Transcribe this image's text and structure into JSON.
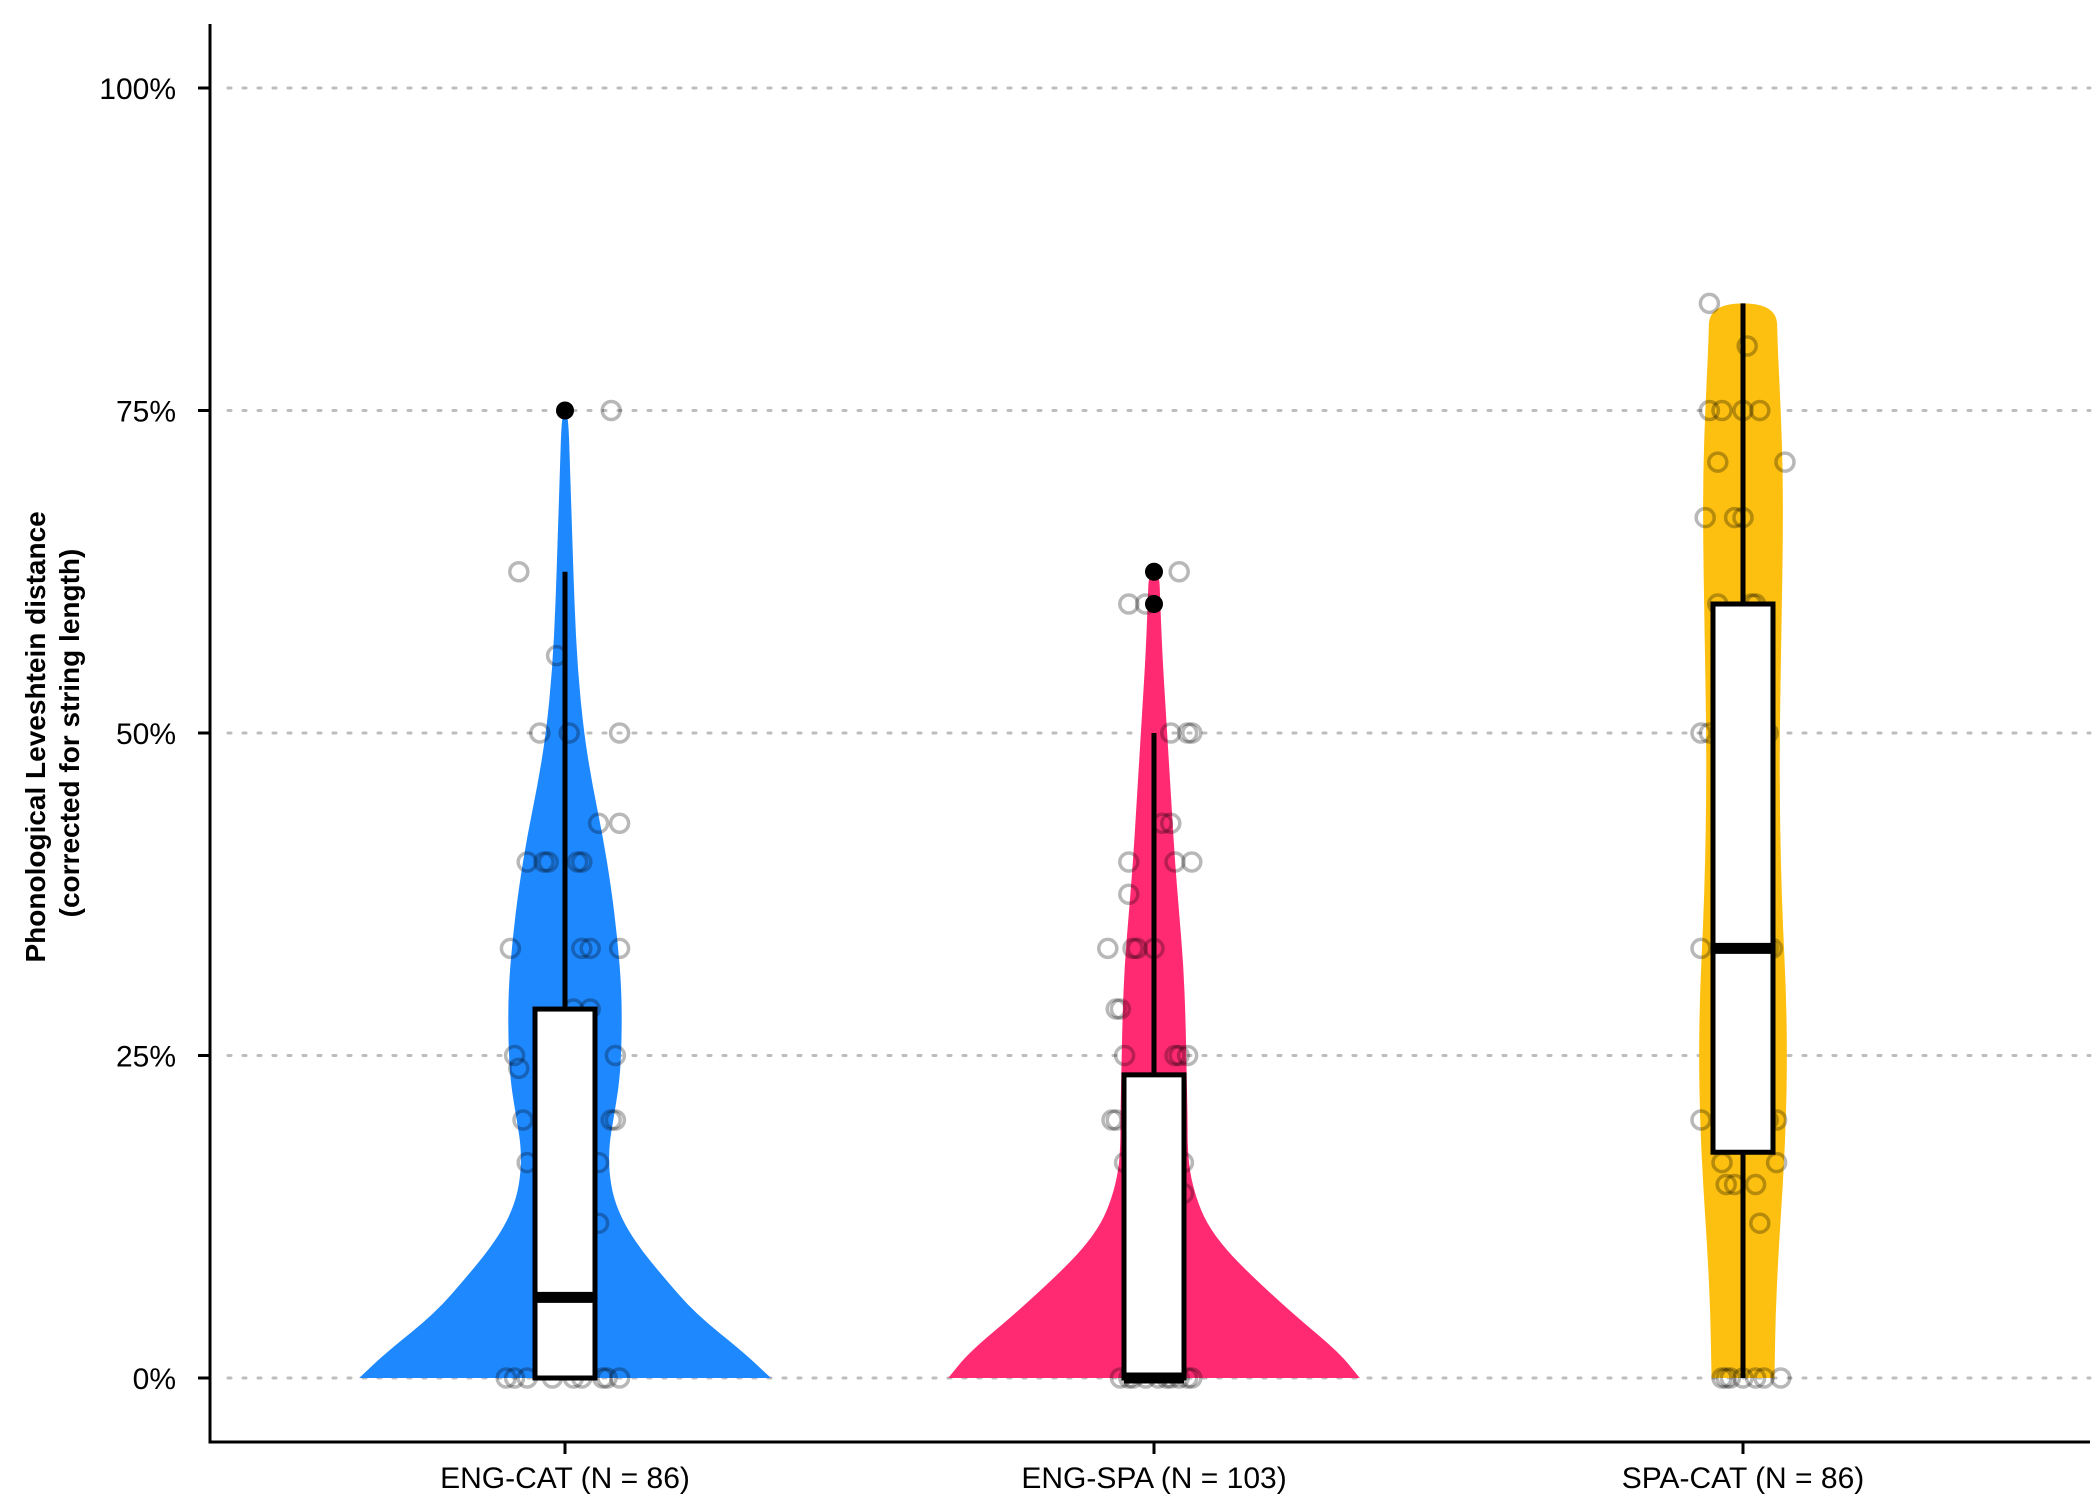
{
  "chart_data": {
    "type": "violin",
    "ylabel": "Phonological Leveshtein distance",
    "ylabel_sub": "(corrected for string length)",
    "ylim": [
      -0.05,
      1.05
    ],
    "y_ticks": [
      0,
      0.25,
      0.5,
      0.75,
      1.0
    ],
    "y_tick_labels": [
      "0%",
      "25%",
      "50%",
      "75%",
      "100%"
    ],
    "grid": "horizontal dotted",
    "categories": [
      "ENG-CAT (N = 86)",
      "ENG-SPA (N = 103)",
      "SPA-CAT (N = 86)"
    ],
    "groups": [
      {
        "name": "ENG-CAT (N = 86)",
        "color": "#1E88FF",
        "range": [
          0,
          0.75
        ],
        "box": {
          "q1": 0,
          "median": 0.0625,
          "q3": 0.286,
          "whisker_low": 0,
          "whisker_high": 0.625
        },
        "outliers": [
          0.75
        ],
        "density": [
          [
            0,
            0.98
          ],
          [
            0.02,
            0.85
          ],
          [
            0.05,
            0.62
          ],
          [
            0.08,
            0.46
          ],
          [
            0.1,
            0.36
          ],
          [
            0.12,
            0.28
          ],
          [
            0.14,
            0.23
          ],
          [
            0.16,
            0.21
          ],
          [
            0.18,
            0.21
          ],
          [
            0.2,
            0.23
          ],
          [
            0.23,
            0.26
          ],
          [
            0.26,
            0.27
          ],
          [
            0.3,
            0.27
          ],
          [
            0.34,
            0.25
          ],
          [
            0.38,
            0.22
          ],
          [
            0.42,
            0.18
          ],
          [
            0.46,
            0.13
          ],
          [
            0.5,
            0.09
          ],
          [
            0.55,
            0.06
          ],
          [
            0.6,
            0.045
          ],
          [
            0.65,
            0.035
          ],
          [
            0.7,
            0.025
          ],
          [
            0.75,
            0.015
          ]
        ],
        "points": [
          [
            0.0,
            -0.14
          ],
          [
            0.0,
            -0.12
          ],
          [
            0.0,
            -0.03
          ],
          [
            0.0,
            0.04
          ],
          [
            0.0,
            0.1
          ],
          [
            0.0,
            0.13
          ],
          [
            0.0,
            0.09
          ],
          [
            0.0,
            -0.09
          ],
          [
            0.0,
            0.02
          ],
          [
            0.12,
            0.08
          ],
          [
            0.167,
            -0.09
          ],
          [
            0.167,
            0.08
          ],
          [
            0.2,
            -0.1
          ],
          [
            0.2,
            0.11
          ],
          [
            0.2,
            0.12
          ],
          [
            0.2,
            0.02
          ],
          [
            0.24,
            -0.11
          ],
          [
            0.25,
            -0.12
          ],
          [
            0.25,
            0.12
          ],
          [
            0.286,
            0.02
          ],
          [
            0.286,
            0.06
          ],
          [
            0.333,
            0.04
          ],
          [
            0.333,
            0.13
          ],
          [
            0.333,
            -0.13
          ],
          [
            0.333,
            0.06
          ],
          [
            0.4,
            -0.09
          ],
          [
            0.4,
            0.03
          ],
          [
            0.4,
            0.04
          ],
          [
            0.4,
            -0.04
          ],
          [
            0.4,
            -0.05
          ],
          [
            0.43,
            0.08
          ],
          [
            0.43,
            0.13
          ],
          [
            0.5,
            -0.06
          ],
          [
            0.5,
            0.01
          ],
          [
            0.5,
            0.13
          ],
          [
            0.56,
            -0.02
          ],
          [
            0.625,
            -0.11
          ],
          [
            0.75,
            0.11
          ]
        ]
      },
      {
        "name": "ENG-SPA (N = 103)",
        "color": "#FF2A72",
        "range": [
          0,
          0.625
        ],
        "box": {
          "q1": 0,
          "median": 0,
          "q3": 0.235,
          "whisker_low": 0,
          "whisker_high": 0.5
        },
        "outliers": [
          0.6,
          0.625
        ],
        "density": [
          [
            0,
            0.98
          ],
          [
            0.02,
            0.88
          ],
          [
            0.05,
            0.66
          ],
          [
            0.08,
            0.46
          ],
          [
            0.1,
            0.34
          ],
          [
            0.12,
            0.25
          ],
          [
            0.14,
            0.2
          ],
          [
            0.16,
            0.17
          ],
          [
            0.18,
            0.16
          ],
          [
            0.2,
            0.16
          ],
          [
            0.24,
            0.155
          ],
          [
            0.28,
            0.15
          ],
          [
            0.32,
            0.14
          ],
          [
            0.36,
            0.12
          ],
          [
            0.4,
            0.1
          ],
          [
            0.44,
            0.085
          ],
          [
            0.48,
            0.07
          ],
          [
            0.52,
            0.055
          ],
          [
            0.56,
            0.04
          ],
          [
            0.6,
            0.03
          ],
          [
            0.625,
            0.025
          ]
        ],
        "points": [
          [
            0.0,
            -0.08
          ],
          [
            0.0,
            -0.05
          ],
          [
            0.0,
            -0.02
          ],
          [
            0.0,
            0.01
          ],
          [
            0.0,
            0.03
          ],
          [
            0.0,
            0.04
          ],
          [
            0.0,
            0.06
          ],
          [
            0.0,
            0.08
          ],
          [
            0.0,
            0.09
          ],
          [
            0.0,
            -0.06
          ],
          [
            0.143,
            0.07
          ],
          [
            0.167,
            -0.07
          ],
          [
            0.167,
            0.07
          ],
          [
            0.2,
            -0.09
          ],
          [
            0.2,
            0.05
          ],
          [
            0.2,
            -0.1
          ],
          [
            0.25,
            -0.07
          ],
          [
            0.25,
            0.05
          ],
          [
            0.25,
            0.06
          ],
          [
            0.25,
            0.08
          ],
          [
            0.286,
            -0.08
          ],
          [
            0.286,
            -0.09
          ],
          [
            0.333,
            -0.11
          ],
          [
            0.333,
            -0.05
          ],
          [
            0.333,
            0.0
          ],
          [
            0.333,
            -0.04
          ],
          [
            0.375,
            -0.06
          ],
          [
            0.4,
            0.05
          ],
          [
            0.4,
            -0.06
          ],
          [
            0.4,
            0.09
          ],
          [
            0.43,
            0.04
          ],
          [
            0.43,
            0.02
          ],
          [
            0.5,
            0.04
          ],
          [
            0.5,
            0.08
          ],
          [
            0.5,
            0.09
          ],
          [
            0.6,
            -0.06
          ],
          [
            0.6,
            -0.02
          ],
          [
            0.625,
            0.06
          ]
        ]
      },
      {
        "name": "SPA-CAT (N = 86)",
        "color": "#FDC010",
        "range": [
          0,
          0.833
        ],
        "box": {
          "q1": 0.175,
          "median": 0.333,
          "q3": 0.6,
          "whisker_low": 0,
          "whisker_high": 0.833
        },
        "outliers": [],
        "density": [
          [
            0,
            0.15
          ],
          [
            0.05,
            0.155
          ],
          [
            0.1,
            0.17
          ],
          [
            0.15,
            0.19
          ],
          [
            0.2,
            0.205
          ],
          [
            0.25,
            0.21
          ],
          [
            0.3,
            0.205
          ],
          [
            0.35,
            0.19
          ],
          [
            0.4,
            0.18
          ],
          [
            0.45,
            0.175
          ],
          [
            0.5,
            0.175
          ],
          [
            0.55,
            0.18
          ],
          [
            0.6,
            0.185
          ],
          [
            0.65,
            0.19
          ],
          [
            0.7,
            0.19
          ],
          [
            0.75,
            0.18
          ],
          [
            0.8,
            0.165
          ],
          [
            0.833,
            0.16
          ]
        ],
        "points": [
          [
            0.0,
            -0.05
          ],
          [
            0.0,
            -0.04
          ],
          [
            0.0,
            0.0
          ],
          [
            0.0,
            0.03
          ],
          [
            0.0,
            0.05
          ],
          [
            0.0,
            0.09
          ],
          [
            0.0,
            -0.03
          ],
          [
            0.12,
            0.04
          ],
          [
            0.15,
            -0.04
          ],
          [
            0.15,
            -0.02
          ],
          [
            0.15,
            0.03
          ],
          [
            0.167,
            -0.05
          ],
          [
            0.167,
            0.08
          ],
          [
            0.2,
            -0.1
          ],
          [
            0.2,
            0.06
          ],
          [
            0.2,
            0.08
          ],
          [
            0.25,
            -0.05
          ],
          [
            0.333,
            -0.1
          ],
          [
            0.333,
            0.04
          ],
          [
            0.333,
            0.07
          ],
          [
            0.333,
            0.06
          ],
          [
            0.4,
            -0.03
          ],
          [
            0.43,
            0.03
          ],
          [
            0.5,
            -0.1
          ],
          [
            0.5,
            -0.08
          ],
          [
            0.5,
            0.04
          ],
          [
            0.5,
            0.06
          ],
          [
            0.6,
            -0.06
          ],
          [
            0.6,
            0.02
          ],
          [
            0.6,
            0.03
          ],
          [
            0.667,
            -0.09
          ],
          [
            0.667,
            -0.02
          ],
          [
            0.667,
            0.0
          ],
          [
            0.71,
            -0.06
          ],
          [
            0.71,
            0.1
          ],
          [
            0.75,
            -0.08
          ],
          [
            0.75,
            -0.05
          ],
          [
            0.75,
            0.0
          ],
          [
            0.75,
            0.04
          ],
          [
            0.8,
            0.01
          ],
          [
            0.833,
            -0.08
          ]
        ]
      }
    ]
  }
}
